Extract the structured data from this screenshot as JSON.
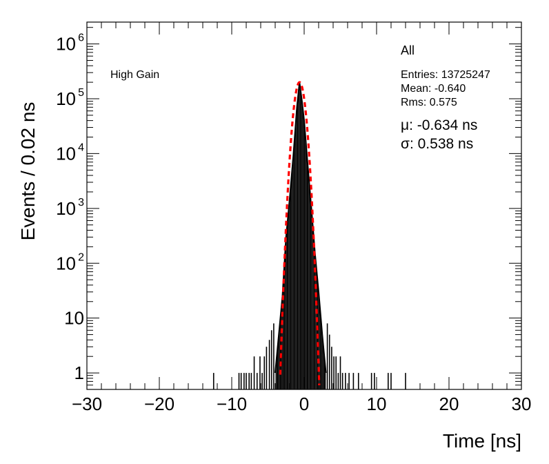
{
  "chart_data": {
    "type": "histogram",
    "title": "All",
    "label": "High Gain",
    "xlabel": "Time [ns]",
    "ylabel": "Events / 0.02 ns",
    "xlim": [
      -30,
      30
    ],
    "ylim": [
      0.5,
      2500000
    ],
    "y_scale": "log",
    "grid": false,
    "x_ticks": [
      -30,
      -20,
      -10,
      0,
      10,
      20,
      30
    ],
    "x_tick_labels": [
      "−30",
      "−20",
      "−10",
      "0",
      "10",
      "20",
      "30"
    ],
    "y_ticks": [
      1,
      10,
      100,
      1000,
      10000,
      100000,
      1000000
    ],
    "y_tick_labels": [
      {
        "base": "1",
        "exp": ""
      },
      {
        "base": "10",
        "exp": ""
      },
      {
        "base": "10",
        "exp": "2"
      },
      {
        "base": "10",
        "exp": "3"
      },
      {
        "base": "10",
        "exp": "4"
      },
      {
        "base": "10",
        "exp": "5"
      },
      {
        "base": "10",
        "exp": "6"
      }
    ],
    "stats": {
      "entries": "Entries: 13725247",
      "mean": "Mean: -0.640",
      "rms": "Rms: 0.575"
    },
    "fit": {
      "mu_label": "μ: -0.634 ns",
      "sigma_label": "σ: 0.538 ns",
      "mu": -0.634,
      "sigma": 0.538,
      "amplitude": 200000,
      "color": "#ff0000"
    },
    "series": [
      {
        "name": "",
        "color": "#000000",
        "points": [
          [
            -4.0,
            1
          ],
          [
            -3.5,
            5
          ],
          [
            -3.0,
            25
          ],
          [
            -2.5,
            300
          ],
          [
            -2.0,
            1500
          ],
          [
            -1.5,
            9000
          ],
          [
            -1.0,
            70000
          ],
          [
            -0.64,
            200000
          ],
          [
            -0.3,
            90000
          ],
          [
            0.0,
            40000
          ],
          [
            0.5,
            6000
          ],
          [
            1.0,
            1000
          ],
          [
            1.5,
            150
          ],
          [
            2.0,
            30
          ],
          [
            2.5,
            5
          ],
          [
            3.0,
            1
          ]
        ]
      }
    ],
    "tails": [
      [
        -12.5,
        1
      ],
      [
        -9.0,
        1
      ],
      [
        -8.7,
        1
      ],
      [
        -8.3,
        1
      ],
      [
        -8.0,
        1
      ],
      [
        -7.6,
        1
      ],
      [
        -7.3,
        1
      ],
      [
        -6.9,
        2
      ],
      [
        -6.5,
        1
      ],
      [
        -6.1,
        2
      ],
      [
        -5.8,
        1
      ],
      [
        -5.5,
        2
      ],
      [
        -5.2,
        3
      ],
      [
        -4.8,
        4
      ],
      [
        -4.5,
        6
      ],
      [
        -4.2,
        8
      ],
      [
        3.2,
        8
      ],
      [
        3.5,
        5
      ],
      [
        3.8,
        3
      ],
      [
        4.1,
        2
      ],
      [
        4.4,
        2
      ],
      [
        4.7,
        1
      ],
      [
        5.0,
        2
      ],
      [
        5.3,
        1
      ],
      [
        5.7,
        1
      ],
      [
        6.2,
        1
      ],
      [
        6.8,
        1
      ],
      [
        7.5,
        1
      ],
      [
        9.3,
        1
      ],
      [
        9.7,
        1
      ],
      [
        11.6,
        1
      ],
      [
        12.0,
        1
      ],
      [
        14.0,
        1
      ]
    ]
  }
}
